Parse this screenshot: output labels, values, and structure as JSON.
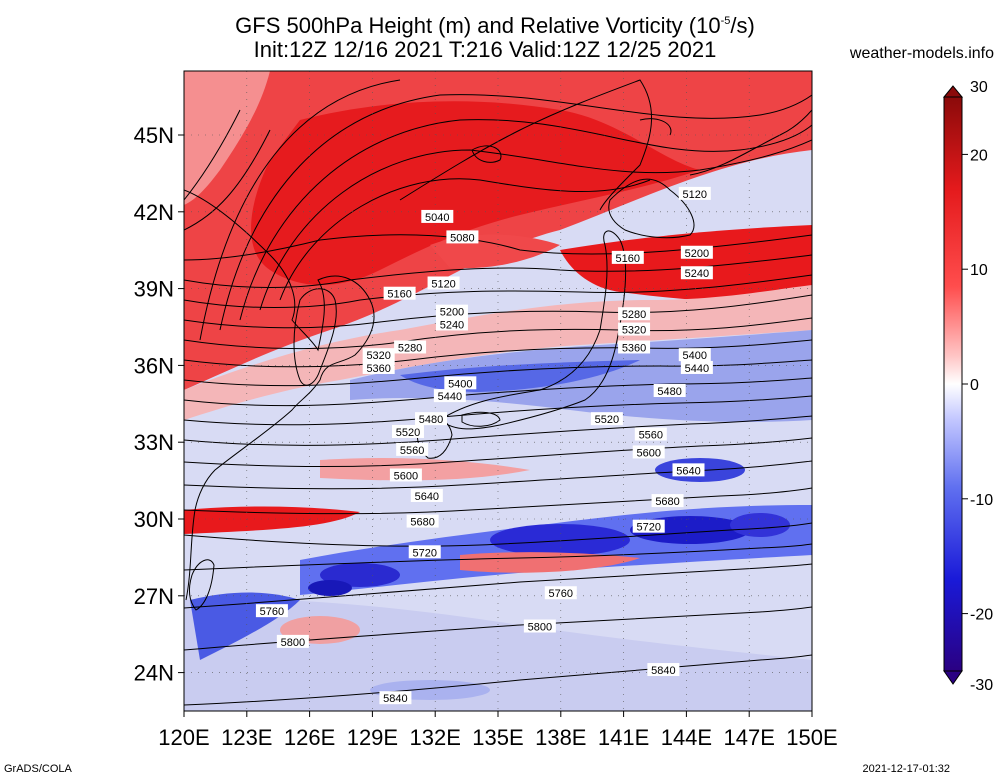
{
  "header": {
    "title_prefix": "GFS 500hPa Height (m) and Relative Vorticity (10",
    "title_exp": "-5",
    "title_suffix": "/s)",
    "subtitle": "Init:12Z 12/16 2021 T:216 Valid:12Z 12/25 2021",
    "site": "weather-models.info"
  },
  "footer": {
    "left": "GrADS/COLA",
    "right": "2021-12-17-01:32"
  },
  "map": {
    "lon_ticks": [
      "120E",
      "123E",
      "126E",
      "129E",
      "132E",
      "135E",
      "138E",
      "141E",
      "144E",
      "147E",
      "150E"
    ],
    "lat_ticks": [
      "24N",
      "27N",
      "30N",
      "33N",
      "36N",
      "39N",
      "42N",
      "45N"
    ],
    "lon_range": [
      120,
      150
    ],
    "lat_range": [
      22.5,
      47.5
    ],
    "contour_labels": [
      {
        "text": "5040",
        "lon": 132.1,
        "lat": 41.8
      },
      {
        "text": "5080",
        "lon": 133.3,
        "lat": 41.0
      },
      {
        "text": "5120",
        "lon": 132.4,
        "lat": 39.2
      },
      {
        "text": "5120",
        "lon": 144.4,
        "lat": 42.7
      },
      {
        "text": "5160",
        "lon": 130.3,
        "lat": 38.8
      },
      {
        "text": "5160",
        "lon": 141.2,
        "lat": 40.2
      },
      {
        "text": "5200",
        "lon": 132.8,
        "lat": 38.1
      },
      {
        "text": "5200",
        "lon": 144.5,
        "lat": 40.4
      },
      {
        "text": "5240",
        "lon": 132.8,
        "lat": 37.6
      },
      {
        "text": "5240",
        "lon": 144.5,
        "lat": 39.6
      },
      {
        "text": "5280",
        "lon": 130.8,
        "lat": 36.7
      },
      {
        "text": "5280",
        "lon": 141.5,
        "lat": 38.0
      },
      {
        "text": "5320",
        "lon": 129.3,
        "lat": 36.4
      },
      {
        "text": "5320",
        "lon": 141.5,
        "lat": 37.4
      },
      {
        "text": "5360",
        "lon": 129.3,
        "lat": 35.9
      },
      {
        "text": "5360",
        "lon": 141.5,
        "lat": 36.7
      },
      {
        "text": "5400",
        "lon": 133.2,
        "lat": 35.3
      },
      {
        "text": "5400",
        "lon": 144.4,
        "lat": 36.4
      },
      {
        "text": "5440",
        "lon": 132.7,
        "lat": 34.8
      },
      {
        "text": "5440",
        "lon": 144.5,
        "lat": 35.9
      },
      {
        "text": "5480",
        "lon": 131.8,
        "lat": 33.9
      },
      {
        "text": "5480",
        "lon": 143.2,
        "lat": 35.0
      },
      {
        "text": "5520",
        "lon": 130.7,
        "lat": 33.4
      },
      {
        "text": "5520",
        "lon": 140.2,
        "lat": 33.9
      },
      {
        "text": "5560",
        "lon": 130.9,
        "lat": 32.7
      },
      {
        "text": "5560",
        "lon": 142.3,
        "lat": 33.3
      },
      {
        "text": "5600",
        "lon": 130.6,
        "lat": 31.7
      },
      {
        "text": "5600",
        "lon": 142.2,
        "lat": 32.6
      },
      {
        "text": "5640",
        "lon": 131.6,
        "lat": 30.9
      },
      {
        "text": "5640",
        "lon": 144.1,
        "lat": 31.9
      },
      {
        "text": "5680",
        "lon": 131.4,
        "lat": 29.9
      },
      {
        "text": "5680",
        "lon": 143.1,
        "lat": 30.7
      },
      {
        "text": "5720",
        "lon": 131.5,
        "lat": 28.7
      },
      {
        "text": "5720",
        "lon": 142.2,
        "lat": 29.7
      },
      {
        "text": "5760",
        "lon": 124.2,
        "lat": 26.4
      },
      {
        "text": "5760",
        "lon": 138.0,
        "lat": 27.1
      },
      {
        "text": "5800",
        "lon": 125.2,
        "lat": 25.2
      },
      {
        "text": "5800",
        "lon": 137.0,
        "lat": 25.8
      },
      {
        "text": "5840",
        "lon": 130.1,
        "lat": 23.0
      },
      {
        "text": "5840",
        "lon": 142.9,
        "lat": 24.1
      }
    ],
    "colors": {
      "strong_red": "#e8161a",
      "red": "#f0484a",
      "light_red": "#f7a3a3",
      "white": "#f2f2f8",
      "light_blue": "#aab2ef",
      "blue": "#4e5fe8",
      "dark_blue": "#1515d0"
    }
  },
  "colorbar": {
    "labels": [
      "30",
      "20",
      "10",
      "0",
      "-10",
      "-20",
      "-30"
    ],
    "values": [
      30,
      20,
      10,
      0,
      -10,
      -20,
      -30
    ],
    "top_color": "#8b0a0a",
    "mid_color": "#ffffff",
    "bottom_color": "#2a0082"
  }
}
